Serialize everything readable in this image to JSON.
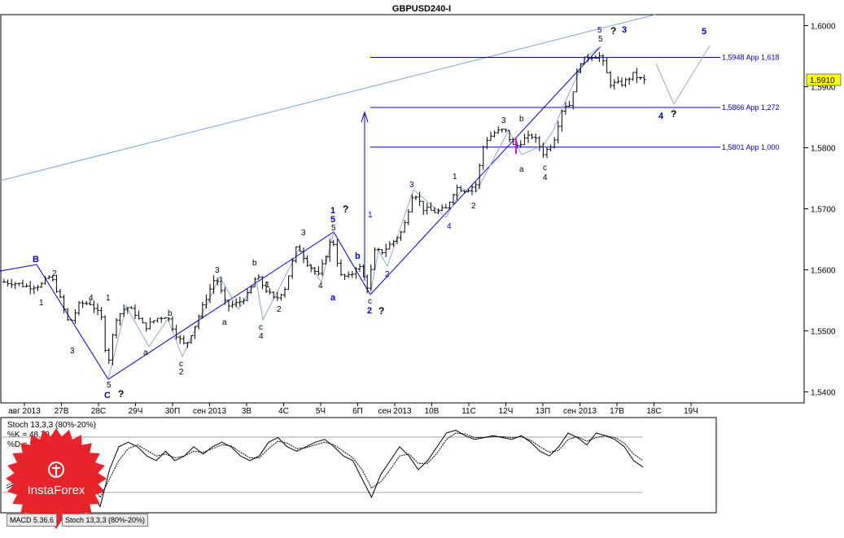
{
  "window_title": "GBPUSD240-I",
  "chart_data": {
    "type": "candlestick",
    "symbol": "GBPUSD240-I",
    "ylim": [
      1.5382,
      1.6018
    ],
    "y_ticks": [
      "1,6000",
      "1,5900",
      "1,5800",
      "1,5700",
      "1,5600",
      "1,5500",
      "1,5400"
    ],
    "x_ticks": [
      "авг 2013",
      "27В",
      "28С",
      "29Ч",
      "30П",
      "сен 2013",
      "3В",
      "4С",
      "5Ч",
      "6П",
      "сен 2013",
      "10В",
      "11С",
      "12Ч",
      "13П",
      "сен 2013",
      "17В",
      "18С",
      "19Ч"
    ],
    "current_price": "1,5910",
    "levels": [
      {
        "label": "1,5948 App 1,618",
        "value": 1.5948
      },
      {
        "label": "1,5866 App 1,272",
        "value": 1.5866
      },
      {
        "label": "1,5801 App 1,000",
        "value": 1.5801
      }
    ],
    "close_path": [
      [
        5,
        1.558
      ],
      [
        20,
        1.5578
      ],
      [
        35,
        1.5572
      ],
      [
        50,
        1.5575
      ],
      [
        62,
        1.559
      ],
      [
        72,
        1.556
      ],
      [
        85,
        1.551
      ],
      [
        98,
        1.5545
      ],
      [
        112,
        1.5545
      ],
      [
        125,
        1.552
      ],
      [
        132,
        1.544
      ],
      [
        142,
        1.552
      ],
      [
        155,
        1.554
      ],
      [
        165,
        1.553
      ],
      [
        178,
        1.5505
      ],
      [
        192,
        1.552
      ],
      [
        205,
        1.5525
      ],
      [
        218,
        1.549
      ],
      [
        228,
        1.5475
      ],
      [
        240,
        1.551
      ],
      [
        252,
        1.555
      ],
      [
        265,
        1.559
      ],
      [
        278,
        1.554
      ],
      [
        292,
        1.5545
      ],
      [
        305,
        1.556
      ],
      [
        315,
        1.559
      ],
      [
        325,
        1.557
      ],
      [
        338,
        1.555
      ],
      [
        350,
        1.557
      ],
      [
        365,
        1.564
      ],
      [
        378,
        1.561
      ],
      [
        392,
        1.559
      ],
      [
        408,
        1.5655
      ],
      [
        418,
        1.559
      ],
      [
        430,
        1.5588
      ],
      [
        440,
        1.561
      ],
      [
        452,
        1.557
      ],
      [
        460,
        1.563
      ],
      [
        470,
        1.563
      ],
      [
        482,
        1.5645
      ],
      [
        495,
        1.5665
      ],
      [
        508,
        1.573
      ],
      [
        520,
        1.57
      ],
      [
        535,
        1.5695
      ],
      [
        548,
        1.57
      ],
      [
        560,
        1.5735
      ],
      [
        572,
        1.573
      ],
      [
        585,
        1.574
      ],
      [
        595,
        1.581
      ],
      [
        608,
        1.5825
      ],
      [
        620,
        1.583
      ],
      [
        632,
        1.58
      ],
      [
        645,
        1.5815
      ],
      [
        655,
        1.582
      ],
      [
        668,
        1.579
      ],
      [
        680,
        1.581
      ],
      [
        692,
        1.587
      ],
      [
        700,
        1.587
      ],
      [
        712,
        1.594
      ],
      [
        725,
        1.595
      ],
      [
        738,
        1.595
      ],
      [
        750,
        1.5905
      ],
      [
        765,
        1.5905
      ],
      [
        778,
        1.592
      ],
      [
        790,
        1.591
      ]
    ],
    "wave_labels": {
      "blue": [
        "B",
        "C",
        "1",
        "5",
        "c",
        "2",
        "1",
        "2",
        "3",
        "4",
        "5",
        "3",
        "4",
        "5",
        "a",
        "b"
      ],
      "black": [
        "2",
        "1",
        "3",
        "4",
        "1",
        "5",
        "b",
        "a",
        "c",
        "2",
        "3",
        "a",
        "b",
        "c",
        "4",
        "1",
        "2",
        "3",
        "4",
        "5",
        "1",
        "2",
        "3",
        "b",
        "a",
        "c",
        "4",
        "5"
      ],
      "question": [
        "?",
        "?",
        "?",
        "?",
        "?"
      ]
    },
    "projection": [
      {
        "x": "17В",
        "y": 1.595
      },
      {
        "x": "18С",
        "y": 1.5866
      },
      {
        "x": "19Ч",
        "y": 1.596
      }
    ]
  },
  "stoch": {
    "title": "Stoch 13,3,3 (80%-20%)",
    "k_label": "%K = 48,79",
    "d_label": "%D = 55,46",
    "upper_level": 80,
    "lower_level": 20,
    "k": [
      25,
      30,
      45,
      35,
      30,
      60,
      45,
      55,
      40,
      20,
      5,
      45,
      70,
      75,
      70,
      60,
      55,
      65,
      55,
      60,
      70,
      62,
      70,
      75,
      70,
      60,
      55,
      60,
      75,
      80,
      70,
      65,
      70,
      75,
      78,
      70,
      60,
      55,
      35,
      15,
      40,
      55,
      70,
      60,
      45,
      55,
      70,
      85,
      88,
      82,
      78,
      80,
      82,
      80,
      78,
      82,
      75,
      65,
      60,
      70,
      85,
      80,
      72,
      85,
      82,
      78,
      70,
      55,
      48
    ],
    "d": [
      28,
      32,
      40,
      38,
      33,
      50,
      48,
      52,
      45,
      30,
      15,
      35,
      55,
      68,
      72,
      66,
      60,
      62,
      58,
      60,
      65,
      64,
      68,
      72,
      71,
      64,
      58,
      58,
      68,
      76,
      74,
      68,
      69,
      72,
      75,
      72,
      65,
      58,
      45,
      25,
      32,
      45,
      60,
      62,
      52,
      52,
      63,
      78,
      85,
      84,
      80,
      80,
      81,
      81,
      80,
      81,
      77,
      70,
      64,
      66,
      78,
      81,
      76,
      80,
      82,
      80,
      74,
      62,
      55
    ]
  },
  "tabs": {
    "macd": "MACD 5.36.6",
    "stoch": "Stoch 13,3,3 (80%-20%)"
  },
  "logo": {
    "brand": "InstaForex",
    "color": "#e8232a"
  }
}
